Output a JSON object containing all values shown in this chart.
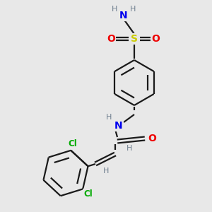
{
  "background_color": "#e8e8e8",
  "atom_colors": {
    "C": "#1a1a1a",
    "H": "#708090",
    "N": "#0000ee",
    "O": "#ee0000",
    "S": "#cccc00",
    "Cl": "#00aa00"
  },
  "bond_color": "#1a1a1a",
  "bond_lw": 1.6,
  "figsize": [
    3.0,
    3.0
  ],
  "dpi": 100
}
